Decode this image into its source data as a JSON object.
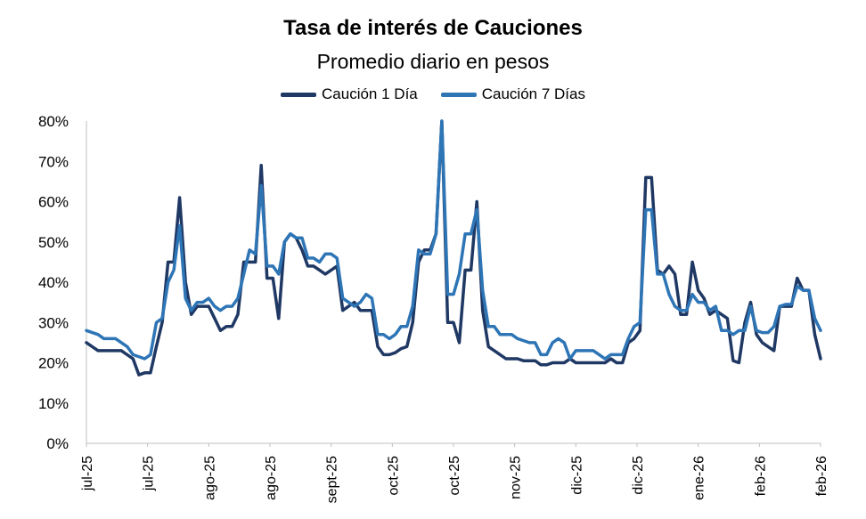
{
  "chart_data": {
    "type": "line",
    "title": "Tasa de interés de Cauciones",
    "subtitle": "Promedio diario en pesos",
    "ylabel": "",
    "xlabel": "",
    "ylim": [
      0,
      80
    ],
    "yticks": [
      "0%",
      "10%",
      "20%",
      "30%",
      "40%",
      "50%",
      "60%",
      "70%",
      "80%"
    ],
    "xticks": [
      "jul-25",
      "jul-25",
      "ago-25",
      "ago-25",
      "sept-25",
      "oct-25",
      "oct-25",
      "nov-25",
      "dic-25",
      "dic-25",
      "ene-26",
      "feb-26",
      "feb-26"
    ],
    "legend_position": "top-center",
    "grid": false,
    "series": [
      {
        "name": "Caución 1 Día",
        "color": "#1F3864",
        "points": [
          [
            0,
            25
          ],
          [
            2,
            23
          ],
          [
            4,
            23
          ],
          [
            6,
            23
          ],
          [
            8,
            21
          ],
          [
            9,
            17
          ],
          [
            10,
            17.5
          ],
          [
            11,
            17.5
          ],
          [
            12,
            24
          ],
          [
            13,
            30
          ],
          [
            14,
            45
          ],
          [
            15,
            45
          ],
          [
            16,
            61
          ],
          [
            17,
            40
          ],
          [
            18,
            32
          ],
          [
            19,
            34
          ],
          [
            20,
            34
          ],
          [
            21,
            34
          ],
          [
            22,
            31
          ],
          [
            23,
            28
          ],
          [
            24,
            29
          ],
          [
            25,
            29
          ],
          [
            26,
            32
          ],
          [
            27,
            45
          ],
          [
            28,
            45
          ],
          [
            29,
            45
          ],
          [
            30,
            69
          ],
          [
            31,
            41
          ],
          [
            32,
            41
          ],
          [
            33,
            31
          ],
          [
            34,
            50
          ],
          [
            35,
            52
          ],
          [
            36,
            51
          ],
          [
            37,
            48
          ],
          [
            38,
            44
          ],
          [
            39,
            44
          ],
          [
            40,
            43
          ],
          [
            41,
            42
          ],
          [
            42,
            43
          ],
          [
            43,
            44
          ],
          [
            44,
            33
          ],
          [
            45,
            34
          ],
          [
            46,
            35
          ],
          [
            47,
            33
          ],
          [
            48,
            33
          ],
          [
            49,
            33
          ],
          [
            50,
            24
          ],
          [
            51,
            22
          ],
          [
            52,
            22
          ],
          [
            53,
            22.5
          ],
          [
            54,
            23.5
          ],
          [
            55,
            24
          ],
          [
            56,
            30
          ],
          [
            57,
            45
          ],
          [
            58,
            48
          ],
          [
            59,
            48
          ],
          [
            60,
            52
          ],
          [
            61,
            82
          ],
          [
            62,
            30
          ],
          [
            63,
            30
          ],
          [
            64,
            25
          ],
          [
            65,
            43
          ],
          [
            66,
            43
          ],
          [
            67,
            60
          ],
          [
            68,
            33
          ],
          [
            69,
            24
          ],
          [
            70,
            23
          ],
          [
            71,
            22
          ],
          [
            72,
            21
          ],
          [
            73,
            21
          ],
          [
            74,
            21
          ],
          [
            75,
            20.5
          ],
          [
            76,
            20.5
          ],
          [
            77,
            20.5
          ],
          [
            78,
            19.5
          ],
          [
            79,
            19.5
          ],
          [
            80,
            20
          ],
          [
            81,
            20
          ],
          [
            82,
            20
          ],
          [
            83,
            21
          ],
          [
            84,
            20
          ],
          [
            85,
            20
          ],
          [
            86,
            20
          ],
          [
            87,
            20
          ],
          [
            88,
            20
          ],
          [
            89,
            20
          ],
          [
            90,
            21
          ],
          [
            91,
            20
          ],
          [
            92,
            20
          ],
          [
            93,
            25
          ],
          [
            94,
            26
          ],
          [
            95,
            28
          ],
          [
            96,
            66
          ],
          [
            97,
            66
          ],
          [
            98,
            43
          ],
          [
            99,
            42
          ],
          [
            100,
            44
          ],
          [
            101,
            42
          ],
          [
            102,
            32
          ],
          [
            103,
            32
          ],
          [
            104,
            45
          ],
          [
            105,
            38
          ],
          [
            106,
            36
          ],
          [
            107,
            32
          ],
          [
            108,
            33
          ],
          [
            109,
            32
          ],
          [
            110,
            31
          ],
          [
            111,
            20.5
          ],
          [
            112,
            20
          ],
          [
            113,
            30
          ],
          [
            114,
            35
          ],
          [
            115,
            27
          ],
          [
            116,
            25
          ],
          [
            117,
            24
          ],
          [
            118,
            23
          ],
          [
            119,
            34
          ],
          [
            120,
            34
          ],
          [
            121,
            34
          ],
          [
            122,
            41
          ],
          [
            123,
            38
          ],
          [
            124,
            38
          ],
          [
            125,
            27
          ],
          [
            126,
            21
          ]
        ]
      },
      {
        "name": "Caución 7 Días",
        "color": "#2E75B6",
        "points": [
          [
            0,
            28
          ],
          [
            2,
            27
          ],
          [
            3,
            26
          ],
          [
            5,
            26
          ],
          [
            7,
            24
          ],
          [
            8,
            22
          ],
          [
            10,
            21
          ],
          [
            11,
            22
          ],
          [
            12,
            30
          ],
          [
            13,
            31
          ],
          [
            14,
            40
          ],
          [
            15,
            43
          ],
          [
            16,
            54
          ],
          [
            17,
            36
          ],
          [
            18,
            33
          ],
          [
            19,
            35
          ],
          [
            20,
            35
          ],
          [
            21,
            36
          ],
          [
            22,
            34
          ],
          [
            23,
            33
          ],
          [
            24,
            34
          ],
          [
            25,
            34
          ],
          [
            26,
            36
          ],
          [
            27,
            42
          ],
          [
            28,
            48
          ],
          [
            29,
            47
          ],
          [
            30,
            64
          ],
          [
            31,
            44
          ],
          [
            32,
            44
          ],
          [
            33,
            42
          ],
          [
            34,
            50
          ],
          [
            35,
            52
          ],
          [
            36,
            51
          ],
          [
            37,
            51
          ],
          [
            38,
            46
          ],
          [
            39,
            46
          ],
          [
            40,
            45
          ],
          [
            41,
            47
          ],
          [
            42,
            47
          ],
          [
            43,
            46
          ],
          [
            44,
            36
          ],
          [
            45,
            35
          ],
          [
            46,
            34
          ],
          [
            47,
            35
          ],
          [
            48,
            37
          ],
          [
            49,
            36
          ],
          [
            50,
            27
          ],
          [
            51,
            27
          ],
          [
            52,
            26
          ],
          [
            53,
            27
          ],
          [
            54,
            29
          ],
          [
            55,
            29
          ],
          [
            56,
            34
          ],
          [
            57,
            48
          ],
          [
            58,
            47
          ],
          [
            59,
            47
          ],
          [
            60,
            52
          ],
          [
            61,
            80
          ],
          [
            62,
            37
          ],
          [
            63,
            37
          ],
          [
            64,
            42
          ],
          [
            65,
            52
          ],
          [
            66,
            52
          ],
          [
            67,
            58
          ],
          [
            68,
            38
          ],
          [
            69,
            29
          ],
          [
            70,
            29
          ],
          [
            71,
            27
          ],
          [
            72,
            27
          ],
          [
            73,
            27
          ],
          [
            74,
            26
          ],
          [
            75,
            25.5
          ],
          [
            76,
            25
          ],
          [
            77,
            25
          ],
          [
            78,
            22
          ],
          [
            79,
            22
          ],
          [
            80,
            25
          ],
          [
            81,
            26
          ],
          [
            82,
            25
          ],
          [
            83,
            21
          ],
          [
            84,
            23
          ],
          [
            85,
            23
          ],
          [
            86,
            23
          ],
          [
            87,
            23
          ],
          [
            88,
            22
          ],
          [
            89,
            21
          ],
          [
            90,
            22
          ],
          [
            91,
            22
          ],
          [
            92,
            22
          ],
          [
            93,
            26
          ],
          [
            94,
            29
          ],
          [
            95,
            30
          ],
          [
            96,
            58
          ],
          [
            97,
            58
          ],
          [
            98,
            42
          ],
          [
            99,
            42
          ],
          [
            100,
            37
          ],
          [
            101,
            34
          ],
          [
            102,
            33
          ],
          [
            103,
            33
          ],
          [
            104,
            37
          ],
          [
            105,
            35
          ],
          [
            106,
            35
          ],
          [
            107,
            33
          ],
          [
            108,
            34
          ],
          [
            109,
            28
          ],
          [
            110,
            28
          ],
          [
            111,
            27
          ],
          [
            112,
            28
          ],
          [
            113,
            28
          ],
          [
            114,
            34
          ],
          [
            115,
            28
          ],
          [
            116,
            27.5
          ],
          [
            117,
            27.5
          ],
          [
            118,
            29
          ],
          [
            119,
            34
          ],
          [
            120,
            34.5
          ],
          [
            121,
            34.5
          ],
          [
            122,
            39
          ],
          [
            123,
            38
          ],
          [
            124,
            38
          ],
          [
            125,
            31
          ],
          [
            126,
            28
          ]
        ]
      }
    ]
  }
}
